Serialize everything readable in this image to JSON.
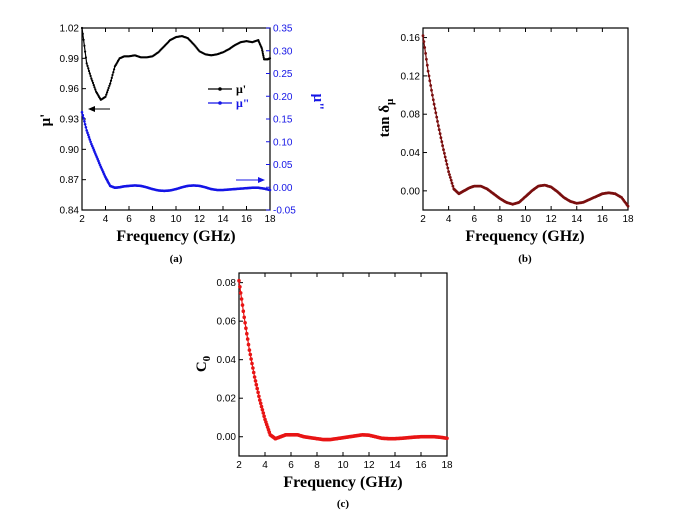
{
  "chart_data": [
    {
      "type": "line",
      "panel_label": "(a)",
      "xlabel": "Frequency (GHz)",
      "ylabel_left": "μ'",
      "ylabel_right": "μ\"",
      "xlim": [
        2,
        18
      ],
      "ylim_left": [
        0.84,
        1.02
      ],
      "ylim_right": [
        -0.05,
        0.35
      ],
      "x_ticks": [
        "2",
        "4",
        "6",
        "8",
        "10",
        "12",
        "14",
        "16",
        "18"
      ],
      "y_ticks_left": [
        "0.84",
        "0.87",
        "0.90",
        "0.93",
        "0.96",
        "0.99",
        "1.02"
      ],
      "y_ticks_right": [
        "-0.05",
        "0.00",
        "0.05",
        "0.10",
        "0.15",
        "0.20",
        "0.25",
        "0.30",
        "0.35"
      ],
      "colors": {
        "left": "#000000",
        "right": "#1515e6"
      },
      "series": [
        {
          "name": "μ'",
          "axis": "left",
          "x": [
            2.0,
            2.4,
            2.8,
            3.2,
            3.6,
            4.0,
            4.4,
            4.8,
            5.2,
            5.6,
            6.0,
            6.5,
            7.0,
            7.5,
            8.0,
            8.5,
            9.0,
            9.5,
            10.0,
            10.5,
            11.0,
            11.5,
            12.0,
            12.5,
            13.0,
            13.5,
            14.0,
            14.5,
            15.0,
            15.5,
            16.0,
            16.5,
            17.0,
            17.3,
            17.5,
            17.8,
            18.0
          ],
          "values": [
            1.02,
            0.985,
            0.97,
            0.957,
            0.949,
            0.952,
            0.965,
            0.982,
            0.99,
            0.992,
            0.992,
            0.993,
            0.991,
            0.991,
            0.992,
            0.996,
            1.002,
            1.008,
            1.011,
            1.012,
            1.01,
            1.004,
            0.997,
            0.994,
            0.993,
            0.994,
            0.996,
            0.999,
            1.003,
            1.006,
            1.007,
            1.006,
            1.008,
            1.0,
            0.989,
            0.989,
            0.99
          ]
        },
        {
          "name": "μ\"",
          "axis": "right",
          "x": [
            2.0,
            2.4,
            2.8,
            3.2,
            3.6,
            4.0,
            4.4,
            4.8,
            5.2,
            5.6,
            6.0,
            6.5,
            7.0,
            7.5,
            8.0,
            8.5,
            9.0,
            9.5,
            10.0,
            10.5,
            11.0,
            11.5,
            12.0,
            12.5,
            13.0,
            13.5,
            14.0,
            14.5,
            15.0,
            15.5,
            16.0,
            16.5,
            17.0,
            17.5,
            18.0
          ],
          "values": [
            0.165,
            0.125,
            0.095,
            0.07,
            0.045,
            0.022,
            0.003,
            -0.001,
            0.0,
            0.002,
            0.003,
            0.004,
            0.003,
            0.0,
            -0.004,
            -0.007,
            -0.008,
            -0.007,
            -0.004,
            0.0,
            0.003,
            0.004,
            0.003,
            0.0,
            -0.004,
            -0.006,
            -0.006,
            -0.005,
            -0.004,
            -0.003,
            -0.002,
            -0.001,
            -0.001,
            -0.003,
            -0.006
          ]
        }
      ],
      "legend_position": "right-middle"
    },
    {
      "type": "line",
      "panel_label": "(b)",
      "xlabel": "Frequency (GHz)",
      "ylabel": "tan δ",
      "ylabel_sub": "μ",
      "xlim": [
        2,
        18
      ],
      "ylim": [
        -0.02,
        0.17
      ],
      "x_ticks": [
        "2",
        "4",
        "6",
        "8",
        "10",
        "12",
        "14",
        "16",
        "18"
      ],
      "y_ticks": [
        "0.00",
        "0.04",
        "0.08",
        "0.12",
        "0.16"
      ],
      "colors": {
        "line": "#7a0f0f"
      },
      "series": [
        {
          "x": [
            2.0,
            2.4,
            2.8,
            3.2,
            3.6,
            4.0,
            4.4,
            4.8,
            5.2,
            5.6,
            6.0,
            6.5,
            7.0,
            7.5,
            8.0,
            8.5,
            9.0,
            9.5,
            10.0,
            10.5,
            11.0,
            11.5,
            12.0,
            12.5,
            13.0,
            13.5,
            14.0,
            14.5,
            15.0,
            15.5,
            16.0,
            16.5,
            17.0,
            17.5,
            18.0
          ],
          "values": [
            0.162,
            0.125,
            0.095,
            0.068,
            0.043,
            0.02,
            0.002,
            -0.003,
            0.0,
            0.003,
            0.005,
            0.005,
            0.002,
            -0.003,
            -0.008,
            -0.012,
            -0.014,
            -0.012,
            -0.006,
            0.0,
            0.005,
            0.006,
            0.004,
            -0.001,
            -0.007,
            -0.011,
            -0.013,
            -0.012,
            -0.009,
            -0.006,
            -0.003,
            -0.002,
            -0.003,
            -0.007,
            -0.016
          ]
        }
      ]
    },
    {
      "type": "line",
      "panel_label": "(c)",
      "xlabel": "Frequency (GHz)",
      "ylabel": "C",
      "ylabel_sub": "0",
      "xlim": [
        2,
        18
      ],
      "ylim": [
        -0.01,
        0.085
      ],
      "x_ticks": [
        "2",
        "4",
        "6",
        "8",
        "10",
        "12",
        "14",
        "16",
        "18"
      ],
      "y_ticks": [
        "0.00",
        "0.02",
        "0.04",
        "0.06",
        "0.08"
      ],
      "colors": {
        "line": "#e81414"
      },
      "series": [
        {
          "x": [
            2.0,
            2.4,
            2.8,
            3.2,
            3.6,
            4.0,
            4.4,
            4.8,
            5.2,
            5.6,
            6.0,
            6.5,
            7.0,
            7.5,
            8.0,
            8.5,
            9.0,
            9.5,
            10.0,
            10.5,
            11.0,
            11.5,
            12.0,
            12.5,
            13.0,
            13.5,
            14.0,
            14.5,
            15.0,
            15.5,
            16.0,
            16.5,
            17.0,
            17.5,
            18.0
          ],
          "values": [
            0.081,
            0.062,
            0.045,
            0.031,
            0.019,
            0.009,
            0.001,
            -0.001,
            0.0,
            0.001,
            0.001,
            0.001,
            0.0,
            -0.0005,
            -0.001,
            -0.0015,
            -0.0015,
            -0.001,
            -0.0005,
            0.0,
            0.0005,
            0.001,
            0.0008,
            0.0,
            -0.0008,
            -0.001,
            -0.001,
            -0.0008,
            -0.0005,
            -0.0002,
            0.0,
            0.0,
            0.0,
            -0.0003,
            -0.0008
          ]
        }
      ]
    }
  ]
}
